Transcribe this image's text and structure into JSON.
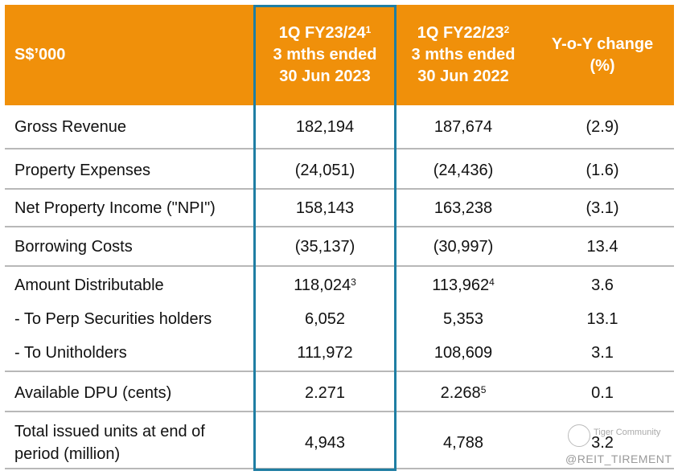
{
  "header": {
    "col1": "S$’000",
    "col2": {
      "line1": "1Q FY23/24",
      "sup": "1",
      "line2": "3 mths ended",
      "line3": "30 Jun 2023"
    },
    "col3": {
      "line1": "1Q FY22/23",
      "sup": "2",
      "line2": "3 mths ended",
      "line3": "30 Jun 2022"
    },
    "col4": {
      "line1": "Y-o-Y change",
      "line2": "(%)"
    }
  },
  "rows": [
    {
      "label": "Gross Revenue",
      "cur": "182,194",
      "prev": "187,674",
      "yoy": "(2.9)"
    },
    {
      "label": "Property Expenses",
      "cur": "(24,051)",
      "prev": "(24,436)",
      "yoy": "(1.6)"
    },
    {
      "label": "Net Property Income (\"NPI\")",
      "cur": "158,143",
      "prev": "163,238",
      "yoy": "(3.1)"
    },
    {
      "label": "Borrowing Costs",
      "cur": "(35,137)",
      "prev": "(30,997)",
      "yoy": "13.4"
    },
    {
      "label": "Amount Distributable",
      "cur": "118,024",
      "cur_sup": "3",
      "prev": "113,962",
      "prev_sup": "4",
      "yoy": "3.6"
    },
    {
      "label": "- To Perp Securities holders",
      "cur": "6,052",
      "prev": "5,353",
      "yoy": "13.1"
    },
    {
      "label": "- To Unitholders",
      "cur": "111,972",
      "prev": "108,609",
      "yoy": "3.1"
    },
    {
      "label": "Available DPU (cents)",
      "cur": "2.271",
      "prev": "2.268",
      "prev_sup": "5",
      "yoy": "0.1"
    },
    {
      "label_line1": "Total issued units at end of",
      "label_line2": "period (million)",
      "cur": "4,943",
      "prev": "4,788",
      "yoy": "3.2"
    }
  ],
  "watermark": {
    "brand": "Tiger Community",
    "handle": "@REIT_TIREMENT"
  },
  "colors": {
    "header": "#f0900a",
    "highlight_border": "#1f7ea3"
  }
}
